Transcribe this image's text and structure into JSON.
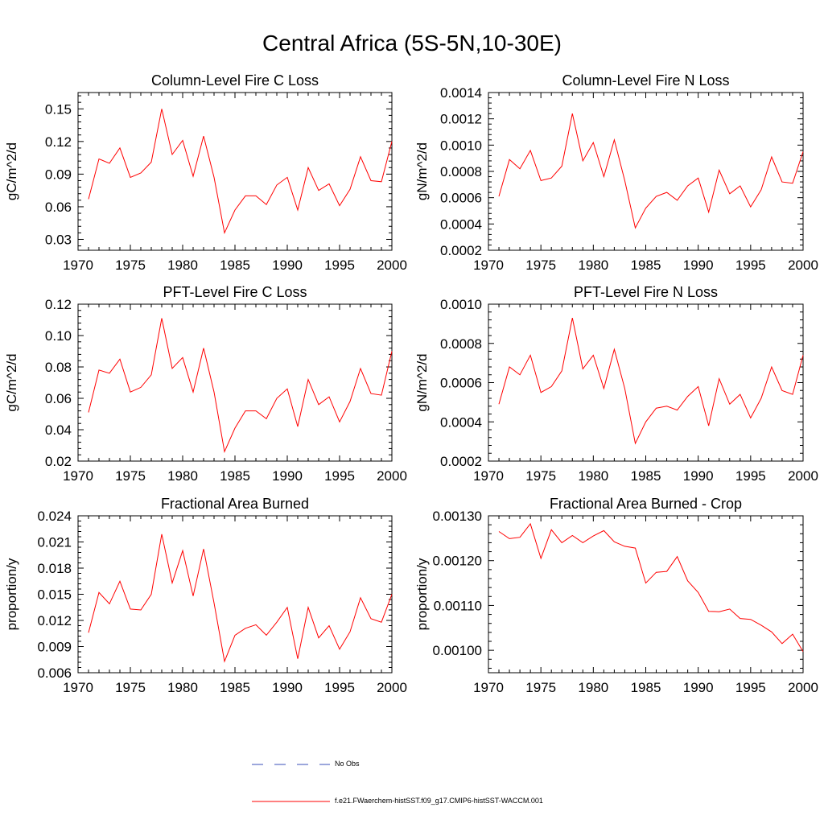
{
  "title": "Central Africa (5S-5N,10-30E)",
  "legend": {
    "no_obs_label": "No Obs",
    "no_obs_color": "#3a4fb8",
    "model_label": "f.e21.FWaerchem-histSST.f09_g17.CMIP6-histSST-WACCM.001",
    "model_color": "#ff0000"
  },
  "chart_data": [
    {
      "type": "line",
      "title": "Column-Level Fire C Loss",
      "ylabel": "gC/m^2/d",
      "xlim": [
        1970,
        2000
      ],
      "ylim": [
        0.02,
        0.165
      ],
      "x_ticks": [
        1970,
        1975,
        1980,
        1985,
        1990,
        1995,
        2000
      ],
      "y_ticks": [
        0.03,
        0.06,
        0.09,
        0.12,
        0.15
      ],
      "y_tick_labels": [
        "0.03",
        "0.06",
        "0.09",
        "0.12",
        "0.15"
      ],
      "x": [
        1971,
        1972,
        1973,
        1974,
        1975,
        1976,
        1977,
        1978,
        1979,
        1980,
        1981,
        1982,
        1983,
        1984,
        1985,
        1986,
        1987,
        1988,
        1989,
        1990,
        1991,
        1992,
        1993,
        1994,
        1995,
        1996,
        1997,
        1998,
        1999,
        2000
      ],
      "series": [
        {
          "color": "#ff0000",
          "values": [
            0.067,
            0.104,
            0.1,
            0.114,
            0.087,
            0.091,
            0.101,
            0.15,
            0.108,
            0.121,
            0.088,
            0.125,
            0.087,
            0.036,
            0.057,
            0.07,
            0.07,
            0.062,
            0.08,
            0.087,
            0.057,
            0.096,
            0.075,
            0.081,
            0.061,
            0.076,
            0.106,
            0.084,
            0.083,
            0.12
          ]
        }
      ]
    },
    {
      "type": "line",
      "title": "Column-Level Fire N Loss",
      "ylabel": "gN/m^2/d",
      "xlim": [
        1970,
        2000
      ],
      "ylim": [
        0.0002,
        0.0014
      ],
      "x_ticks": [
        1970,
        1975,
        1980,
        1985,
        1990,
        1995,
        2000
      ],
      "y_ticks": [
        0.0002,
        0.0004,
        0.0006,
        0.0008,
        0.001,
        0.0012,
        0.0014
      ],
      "y_tick_labels": [
        "0.0002",
        "0.0004",
        "0.0006",
        "0.0008",
        "0.0010",
        "0.0012",
        "0.0014"
      ],
      "x": [
        1971,
        1972,
        1973,
        1974,
        1975,
        1976,
        1977,
        1978,
        1979,
        1980,
        1981,
        1982,
        1983,
        1984,
        1985,
        1986,
        1987,
        1988,
        1989,
        1990,
        1991,
        1992,
        1993,
        1994,
        1995,
        1996,
        1997,
        1998,
        1999,
        2000
      ],
      "series": [
        {
          "color": "#ff0000",
          "values": [
            0.00061,
            0.00089,
            0.00082,
            0.00096,
            0.00073,
            0.00075,
            0.00084,
            0.00124,
            0.00088,
            0.00102,
            0.00076,
            0.00104,
            0.00073,
            0.00037,
            0.00052,
            0.00061,
            0.00064,
            0.00058,
            0.00069,
            0.00075,
            0.00049,
            0.00081,
            0.00063,
            0.00069,
            0.00053,
            0.00066,
            0.00091,
            0.00072,
            0.00071,
            0.00095
          ]
        }
      ]
    },
    {
      "type": "line",
      "title": "PFT-Level Fire C Loss",
      "ylabel": "gC/m^2/d",
      "xlim": [
        1970,
        2000
      ],
      "ylim": [
        0.02,
        0.12
      ],
      "x_ticks": [
        1970,
        1975,
        1980,
        1985,
        1990,
        1995,
        2000
      ],
      "y_ticks": [
        0.02,
        0.04,
        0.06,
        0.08,
        0.1,
        0.12
      ],
      "y_tick_labels": [
        "0.02",
        "0.04",
        "0.06",
        "0.08",
        "0.10",
        "0.12"
      ],
      "x": [
        1971,
        1972,
        1973,
        1974,
        1975,
        1976,
        1977,
        1978,
        1979,
        1980,
        1981,
        1982,
        1983,
        1984,
        1985,
        1986,
        1987,
        1988,
        1989,
        1990,
        1991,
        1992,
        1993,
        1994,
        1995,
        1996,
        1997,
        1998,
        1999,
        2000
      ],
      "series": [
        {
          "color": "#ff0000",
          "values": [
            0.051,
            0.078,
            0.076,
            0.085,
            0.064,
            0.067,
            0.075,
            0.111,
            0.079,
            0.086,
            0.064,
            0.092,
            0.064,
            0.026,
            0.041,
            0.052,
            0.052,
            0.047,
            0.06,
            0.066,
            0.042,
            0.072,
            0.056,
            0.061,
            0.045,
            0.058,
            0.079,
            0.063,
            0.062,
            0.09
          ]
        }
      ]
    },
    {
      "type": "line",
      "title": "PFT-Level Fire N Loss",
      "ylabel": "gN/m^2/d",
      "xlim": [
        1970,
        2000
      ],
      "ylim": [
        0.0002,
        0.001
      ],
      "x_ticks": [
        1970,
        1975,
        1980,
        1985,
        1990,
        1995,
        2000
      ],
      "y_ticks": [
        0.0002,
        0.0004,
        0.0006,
        0.0008,
        0.001
      ],
      "y_tick_labels": [
        "0.0002",
        "0.0004",
        "0.0006",
        "0.0008",
        "0.0010"
      ],
      "x": [
        1971,
        1972,
        1973,
        1974,
        1975,
        1976,
        1977,
        1978,
        1979,
        1980,
        1981,
        1982,
        1983,
        1984,
        1985,
        1986,
        1987,
        1988,
        1989,
        1990,
        1991,
        1992,
        1993,
        1994,
        1995,
        1996,
        1997,
        1998,
        1999,
        2000
      ],
      "series": [
        {
          "color": "#ff0000",
          "values": [
            0.00049,
            0.00068,
            0.00064,
            0.00074,
            0.00055,
            0.00058,
            0.00066,
            0.00093,
            0.00067,
            0.00074,
            0.00057,
            0.00077,
            0.00057,
            0.00029,
            0.0004,
            0.00047,
            0.00048,
            0.00046,
            0.00053,
            0.00058,
            0.00038,
            0.00062,
            0.00049,
            0.00054,
            0.00042,
            0.00052,
            0.00068,
            0.00056,
            0.00054,
            0.00074
          ]
        }
      ]
    },
    {
      "type": "line",
      "title": "Fractional Area Burned",
      "ylabel": "proportion/y",
      "xlim": [
        1970,
        2000
      ],
      "ylim": [
        0.006,
        0.024
      ],
      "x_ticks": [
        1970,
        1975,
        1980,
        1985,
        1990,
        1995,
        2000
      ],
      "y_ticks": [
        0.006,
        0.009,
        0.012,
        0.015,
        0.018,
        0.021,
        0.024
      ],
      "y_tick_labels": [
        "0.006",
        "0.009",
        "0.012",
        "0.015",
        "0.018",
        "0.021",
        "0.024"
      ],
      "x": [
        1971,
        1972,
        1973,
        1974,
        1975,
        1976,
        1977,
        1978,
        1979,
        1980,
        1981,
        1982,
        1983,
        1984,
        1985,
        1986,
        1987,
        1988,
        1989,
        1990,
        1991,
        1992,
        1993,
        1994,
        1995,
        1996,
        1997,
        1998,
        1999,
        2000
      ],
      "series": [
        {
          "color": "#ff0000",
          "values": [
            0.0106,
            0.0152,
            0.0139,
            0.0165,
            0.0133,
            0.0132,
            0.015,
            0.0219,
            0.0163,
            0.02,
            0.0148,
            0.0202,
            0.014,
            0.0073,
            0.0103,
            0.0111,
            0.0115,
            0.0103,
            0.0118,
            0.0135,
            0.0076,
            0.0135,
            0.01,
            0.0114,
            0.0087,
            0.0107,
            0.0146,
            0.0122,
            0.0118,
            0.015
          ]
        }
      ]
    },
    {
      "type": "line",
      "title": "Fractional Area Burned - Crop",
      "ylabel": "proportion/y",
      "xlim": [
        1970,
        2000
      ],
      "ylim": [
        0.00095,
        0.0013
      ],
      "x_ticks": [
        1970,
        1975,
        1980,
        1985,
        1990,
        1995,
        2000
      ],
      "y_ticks": [
        0.001,
        0.0011,
        0.0012,
        0.0013
      ],
      "y_tick_labels": [
        "0.00100",
        "0.00110",
        "0.00120",
        "0.00130"
      ],
      "x": [
        1971,
        1972,
        1973,
        1974,
        1975,
        1976,
        1977,
        1978,
        1979,
        1980,
        1981,
        1982,
        1983,
        1984,
        1985,
        1986,
        1987,
        1988,
        1989,
        1990,
        1991,
        1992,
        1993,
        1994,
        1995,
        1996,
        1997,
        1998,
        1999,
        2000
      ],
      "series": [
        {
          "color": "#ff0000",
          "values": [
            0.001265,
            0.001249,
            0.001252,
            0.001282,
            0.001205,
            0.001269,
            0.00124,
            0.001256,
            0.00124,
            0.001255,
            0.001267,
            0.001242,
            0.001232,
            0.001228,
            0.00115,
            0.001174,
            0.001176,
            0.001209,
            0.001155,
            0.001129,
            0.001087,
            0.001086,
            0.001092,
            0.001071,
            0.001069,
            0.001056,
            0.001041,
            0.001015,
            0.001036,
            0.000997
          ]
        }
      ]
    }
  ]
}
